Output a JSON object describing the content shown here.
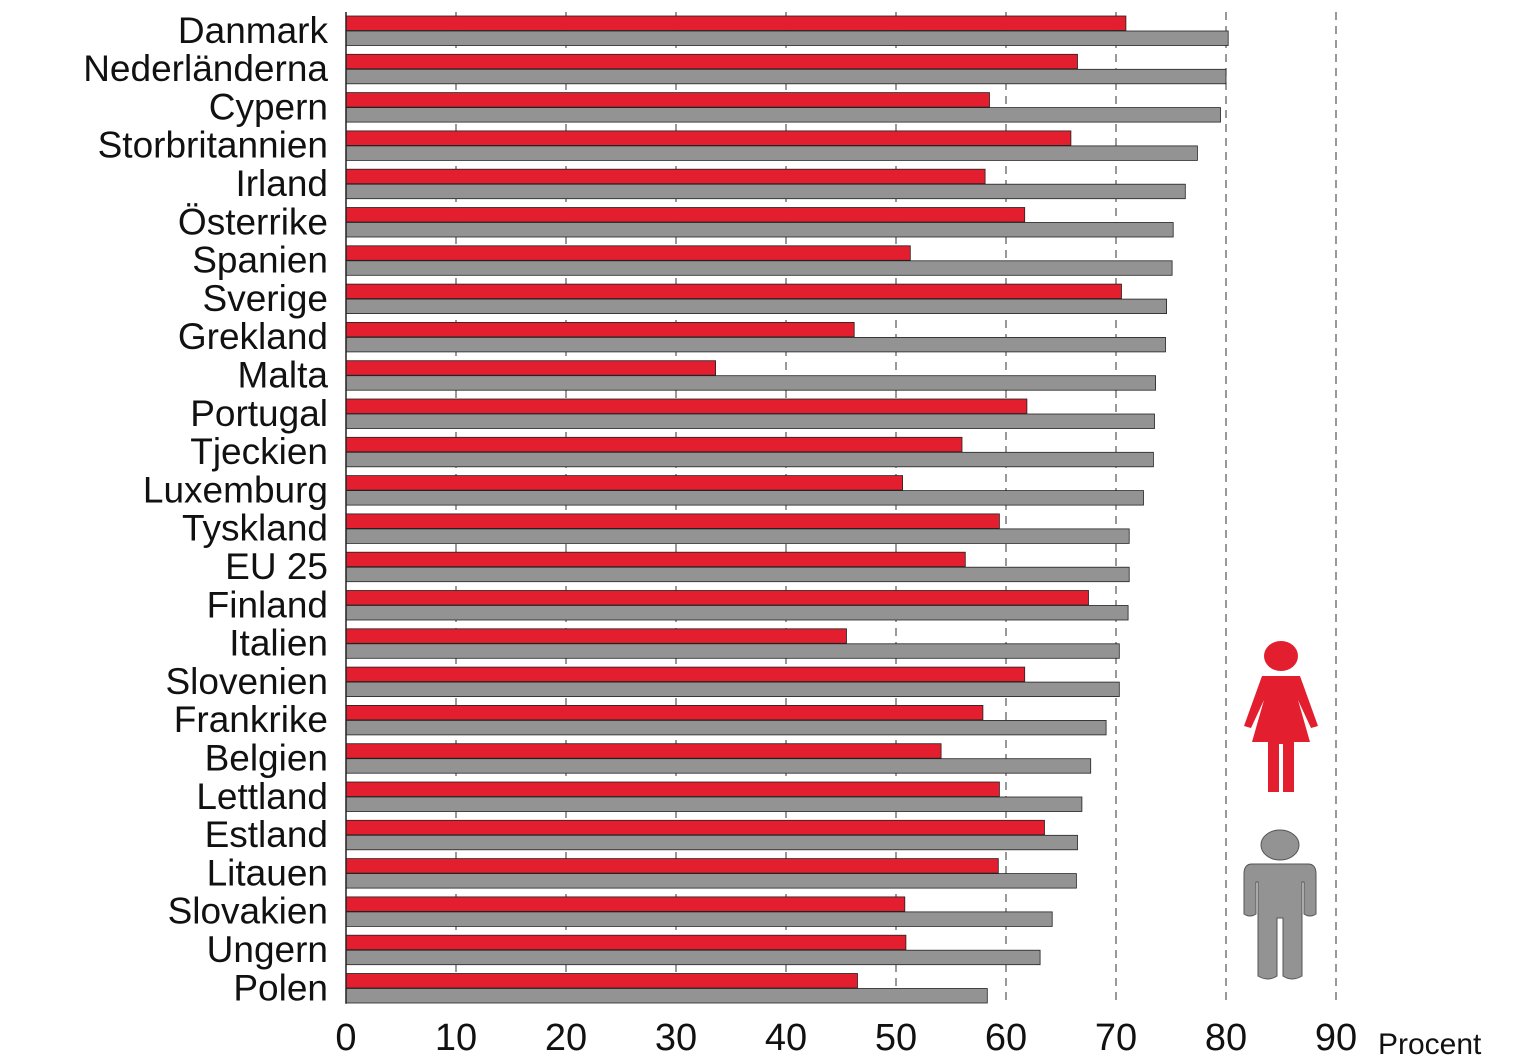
{
  "chart_data": {
    "type": "barh",
    "categories": [
      "Danmark",
      "Nederländerna",
      "Cypern",
      "Storbritannien",
      "Irland",
      "Österrike",
      "Spanien",
      "Sverige",
      "Grekland",
      "Malta",
      "Portugal",
      "Tjeckien",
      "Luxemburg",
      "Tyskland",
      "EU 25",
      "Finland",
      "Italien",
      "Slovenien",
      "Frankrike",
      "Belgien",
      "Lettland",
      "Estland",
      "Litauen",
      "Slovakien",
      "Ungern",
      "Polen"
    ],
    "series": [
      {
        "color": "#e31e2f",
        "values": [
          70.9,
          66.5,
          58.5,
          65.9,
          58.1,
          61.7,
          51.3,
          70.5,
          46.2,
          33.6,
          61.9,
          56.0,
          50.6,
          59.4,
          56.3,
          67.5,
          45.5,
          61.7,
          57.9,
          54.1,
          59.4,
          63.5,
          59.3,
          50.8,
          50.9,
          46.5
        ]
      },
      {
        "color": "#939393",
        "values": [
          80.2,
          80.0,
          79.5,
          77.4,
          76.3,
          75.2,
          75.1,
          74.6,
          74.5,
          73.6,
          73.5,
          73.4,
          72.5,
          71.2,
          71.2,
          71.1,
          70.3,
          70.3,
          69.1,
          67.7,
          66.9,
          66.5,
          66.4,
          64.2,
          63.1,
          58.3
        ]
      }
    ],
    "xlabel": "Procent",
    "xlim": [
      0,
      90
    ],
    "xticks": [
      0,
      10,
      20,
      30,
      40,
      50,
      60,
      70,
      80,
      90
    ],
    "grid": true
  }
}
